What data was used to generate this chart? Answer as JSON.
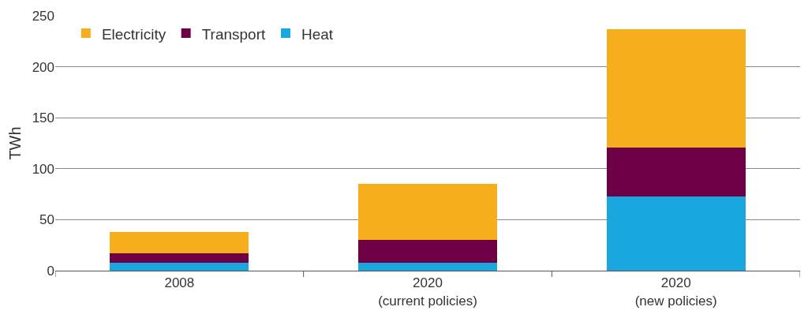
{
  "chart_data": {
    "type": "bar",
    "ylabel": "TWh",
    "stacked": true,
    "categories": [
      "2008",
      "2020\n(current policies)",
      "2020\n(new policies)"
    ],
    "series": [
      {
        "name": "Heat",
        "color": "#1aa7df",
        "values": [
          8,
          8,
          73
        ]
      },
      {
        "name": "Transport",
        "color": "#6e0046",
        "values": [
          9,
          22,
          48
        ]
      },
      {
        "name": "Electricity",
        "color": "#f6ae1d",
        "values": [
          21,
          55,
          116
        ]
      }
    ],
    "ylim": [
      0,
      250
    ],
    "yticks": [
      0,
      50,
      100,
      150,
      200,
      250
    ],
    "grid": "y",
    "legend": "top left"
  }
}
